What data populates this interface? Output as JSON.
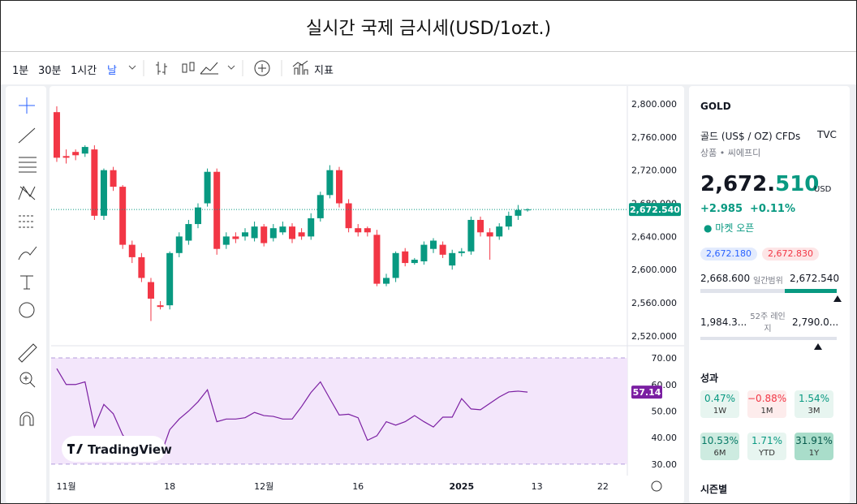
{
  "header": {
    "title": "실시간 국제 금시세(USD/1ozt.)"
  },
  "toolbar": {
    "intervals": [
      "1분",
      "30분",
      "1시간",
      "날"
    ],
    "indicators": "지표"
  },
  "watermark": "TradingView",
  "chart_data": [
    {
      "type": "candlestick",
      "xlim": [
        -0.6,
        60.6
      ],
      "xticks": [
        {
          "value": 1,
          "label": "11월"
        },
        {
          "value": 12,
          "label": "18"
        },
        {
          "value": 22,
          "label": "12월"
        },
        {
          "value": 32,
          "label": "16"
        },
        {
          "value": 43,
          "label": "2025"
        },
        {
          "value": 51,
          "label": "13"
        },
        {
          "value": 58,
          "label": "22"
        }
      ],
      "ylim": [
        2508.2,
        2821.5
      ],
      "yticks": [
        {
          "value": 2520,
          "label": "2,520.000"
        },
        {
          "value": 2560,
          "label": "2,560.000"
        },
        {
          "value": 2600,
          "label": "2,600.000"
        },
        {
          "value": 2640,
          "label": "2,640.000"
        },
        {
          "value": 2680,
          "label": "2,680.000"
        },
        {
          "value": 2720,
          "label": "2,720.000"
        },
        {
          "value": 2760,
          "label": "2,760.000"
        },
        {
          "value": 2800,
          "label": "2,800.000"
        }
      ],
      "up_color": "#089981",
      "down_color": "#f23645",
      "open": [
        2790,
        2737,
        2742,
        2740,
        2745,
        2665,
        2720,
        2700,
        2630,
        2615,
        2585,
        2557,
        2557,
        2620,
        2635,
        2655,
        2680,
        2718,
        2630,
        2640,
        2640,
        2638,
        2652,
        2638,
        2645,
        2652,
        2645,
        2640,
        2662,
        2690,
        2720,
        2680,
        2650,
        2650,
        2642,
        2583,
        2590,
        2622,
        2608,
        2610,
        2625,
        2630,
        2605,
        2620,
        2622,
        2660,
        2645,
        2640,
        2652,
        2665,
        2672
      ],
      "high": [
        2797,
        2745,
        2745,
        2750,
        2750,
        2722,
        2724,
        2702,
        2635,
        2620,
        2590,
        2562,
        2622,
        2645,
        2660,
        2680,
        2722,
        2722,
        2645,
        2645,
        2650,
        2658,
        2655,
        2655,
        2658,
        2656,
        2650,
        2668,
        2694,
        2726,
        2724,
        2685,
        2655,
        2652,
        2648,
        2595,
        2622,
        2626,
        2614,
        2634,
        2638,
        2634,
        2624,
        2626,
        2664,
        2664,
        2650,
        2656,
        2670,
        2678,
        2674
      ],
      "low": [
        2730,
        2728,
        2732,
        2736,
        2660,
        2660,
        2695,
        2625,
        2608,
        2585,
        2538,
        2552,
        2552,
        2615,
        2630,
        2650,
        2676,
        2618,
        2625,
        2632,
        2635,
        2634,
        2628,
        2634,
        2642,
        2632,
        2636,
        2636,
        2658,
        2686,
        2675,
        2645,
        2640,
        2640,
        2580,
        2580,
        2585,
        2604,
        2606,
        2606,
        2620,
        2614,
        2600,
        2616,
        2618,
        2640,
        2612,
        2636,
        2648,
        2660,
        2670
      ],
      "close": [
        2735,
        2735,
        2738,
        2748,
        2665,
        2720,
        2700,
        2630,
        2615,
        2590,
        2565,
        2555,
        2620,
        2640,
        2655,
        2675,
        2718,
        2625,
        2640,
        2637,
        2645,
        2652,
        2632,
        2650,
        2652,
        2637,
        2640,
        2662,
        2690,
        2720,
        2680,
        2650,
        2645,
        2645,
        2583,
        2590,
        2620,
        2608,
        2612,
        2630,
        2635,
        2618,
        2620,
        2622,
        2660,
        2645,
        2640,
        2652,
        2665,
        2672,
        2672.54
      ],
      "last_price": {
        "value": 2672.54,
        "label": "2,672.540"
      }
    },
    {
      "type": "rsi",
      "color": "#7b1fa2",
      "band": [
        30,
        70
      ],
      "band_color": "#f3e6fb",
      "ylim": [
        25.7,
        74.6
      ],
      "yticks": [
        {
          "value": 30,
          "label": "30.00"
        },
        {
          "value": 40,
          "label": "40.00"
        },
        {
          "value": 50,
          "label": "50.00"
        },
        {
          "value": 60,
          "label": "60.00"
        },
        {
          "value": 70,
          "label": "70.00"
        }
      ],
      "values": [
        66,
        60,
        60,
        61,
        44,
        52.5,
        49,
        41,
        37,
        34,
        32,
        33,
        43,
        47,
        50,
        53.5,
        58,
        46,
        47,
        47,
        47.5,
        49.5,
        48.3,
        48,
        47,
        47,
        51.7,
        57,
        61,
        54.7,
        48.5,
        48.8,
        47.5,
        39,
        40.7,
        46,
        44.7,
        46,
        48.3,
        46,
        44,
        47.7,
        47.7,
        54.7,
        50.8,
        50.5,
        52.9,
        55.3,
        57.2,
        57.5,
        57.14
      ],
      "last": {
        "value": 57.14,
        "label": "57.14"
      }
    }
  ],
  "panel": {
    "symbol": "GOLD",
    "description": "골드 (US$ / OZ) CFDs",
    "exchange": "TVC",
    "category": "상품 • 씨에프디",
    "price_main": "2,672.",
    "price_frac": "510",
    "currency": "USD",
    "change": "+2.985",
    "change_pct": "+0.11%",
    "market_status": "마켓 오픈",
    "bid": "2,672.180",
    "ask": "2,672.830",
    "day_low": "2,668.600",
    "day_range_label": "일간범위",
    "day_high": "2,672.540",
    "week52_low": "1,984.3...",
    "week52_label": "52주 레인지",
    "week52_high": "2,790.0...",
    "performance_title": "성과",
    "performance": [
      {
        "value": "0.47%",
        "period": "1W"
      },
      {
        "value": "−0.88%",
        "period": "1M"
      },
      {
        "value": "1.54%",
        "period": "3M"
      },
      {
        "value": "10.53%",
        "period": "6M"
      },
      {
        "value": "1.71%",
        "period": "YTD"
      },
      {
        "value": "31.91%",
        "period": "1Y"
      }
    ],
    "seasonal": "시즌별"
  }
}
